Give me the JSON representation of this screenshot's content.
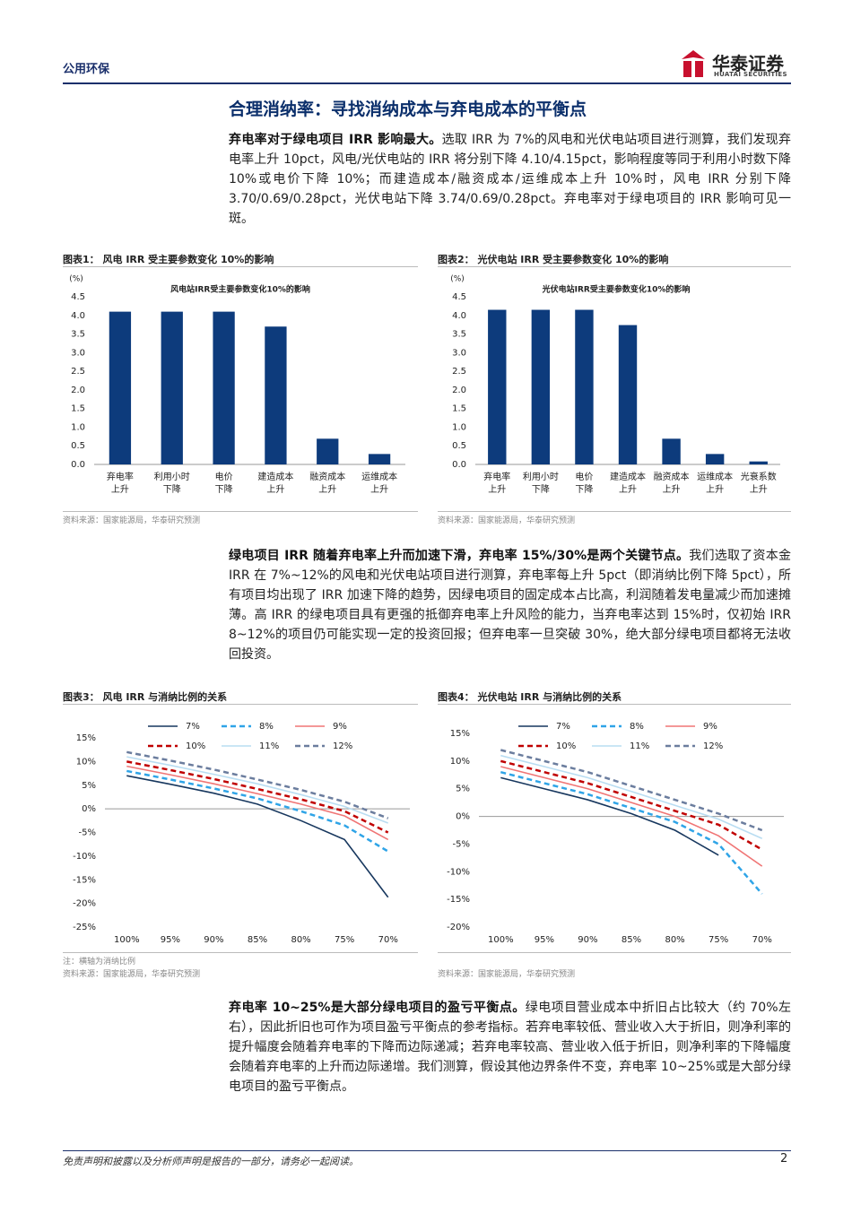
{
  "header": {
    "section": "公用环保",
    "logo_cn": "华泰证券",
    "logo_en": "HUATAI SECURITIES"
  },
  "title": "合理消纳率：寻找消纳成本与弃电成本的平衡点",
  "paragraphs": [
    {
      "lead": "弃电率对于绿电项目 IRR 影响最大。",
      "text": "选取 IRR 为 7%的风电和光伏电站项目进行测算，我们发现弃电率上升 10pct，风电/光伏电站的 IRR 将分别下降 4.10/4.15pct，影响程度等同于利用小时数下降 10%或电价下降 10%；而建造成本/融资成本/运维成本上升 10%时，风电 IRR 分别下降 3.70/0.69/0.28pct，光伏电站下降 3.74/0.69/0.28pct。弃电率对于绿电项目的 IRR 影响可见一斑。"
    },
    {
      "lead": "绿电项目 IRR 随着弃电率上升而加速下滑，弃电率 15%/30%是两个关键节点。",
      "text": "我们选取了资本金 IRR 在 7%~12%的风电和光伏电站项目进行测算，弃电率每上升 5pct（即消纳比例下降 5pct），所有项目均出现了 IRR 加速下降的趋势，因绿电项目的固定成本占比高，利润随着发电量减少而加速摊薄。高 IRR 的绿电项目具有更强的抵御弃电率上升风险的能力，当弃电率达到 15%时，仅初始 IRR 8~12%的项目仍可能实现一定的投资回报；但弃电率一旦突破 30%，绝大部分绿电项目都将无法收回投资。"
    },
    {
      "lead": "弃电率 10~25%是大部分绿电项目的盈亏平衡点。",
      "text": "绿电项目营业成本中折旧占比较大（约 70%左右），因此折旧也可作为项目盈亏平衡点的参考指标。若弃电率较低、营业收入大于折旧，则净利率的提升幅度会随着弃电率的下降而边际递减；若弃电率较高、营业收入低于折旧，则净利率的下降幅度会随着弃电率的上升而边际递增。我们测算，假设其他边界条件不变，弃电率 10~25%或是大部分绿电项目的盈亏平衡点。"
    }
  ],
  "chart_data": [
    {
      "type": "bar",
      "caption": "图表1：  风电 IRR 受主要参数变化 10%的影响",
      "title": "风电站IRR受主要参数变化10%的影响",
      "y_unit": "(%)",
      "categories": [
        [
          "弃电率",
          "上升"
        ],
        [
          "利用小时",
          "下降"
        ],
        [
          "电价",
          "下降"
        ],
        [
          "建造成本",
          "上升"
        ],
        [
          "融资成本",
          "上升"
        ],
        [
          "运维成本",
          "上升"
        ]
      ],
      "values": [
        4.1,
        4.1,
        4.1,
        3.7,
        0.69,
        0.28
      ],
      "color": "#0d3b7c",
      "ylim": [
        0,
        4.5
      ],
      "yticks": [
        {
          "value": 0,
          "label": "0.0"
        },
        {
          "value": 0.5,
          "label": "0.5"
        },
        {
          "value": 1,
          "label": "1.0"
        },
        {
          "value": 1.5,
          "label": "1.5"
        },
        {
          "value": 2,
          "label": "2.0"
        },
        {
          "value": 2.5,
          "label": "2.5"
        },
        {
          "value": 3,
          "label": "3.0"
        },
        {
          "value": 3.5,
          "label": "3.5"
        },
        {
          "value": 4,
          "label": "4.0"
        },
        {
          "value": 4.5,
          "label": "4.5"
        }
      ],
      "source": "资料来源：国家能源局，华泰研究预测"
    },
    {
      "type": "bar",
      "caption": "图表2：  光伏电站 IRR 受主要参数变化 10%的影响",
      "title": "光伏电站IRR受主要参数变化10%的影响",
      "y_unit": "(%)",
      "categories": [
        [
          "弃电率",
          "上升"
        ],
        [
          "利用小时",
          "下降"
        ],
        [
          "电价",
          "下降"
        ],
        [
          "建造成本",
          "上升"
        ],
        [
          "融资成本",
          "上升"
        ],
        [
          "运维成本",
          "上升"
        ],
        [
          "光衰系数",
          "上升"
        ]
      ],
      "values": [
        4.15,
        4.15,
        4.15,
        3.74,
        0.69,
        0.28,
        0.08
      ],
      "color": "#0d3b7c",
      "ylim": [
        0,
        4.5
      ],
      "yticks": [
        {
          "value": 0,
          "label": "0.0"
        },
        {
          "value": 0.5,
          "label": "0.5"
        },
        {
          "value": 1,
          "label": "1.0"
        },
        {
          "value": 1.5,
          "label": "1.5"
        },
        {
          "value": 2,
          "label": "2.0"
        },
        {
          "value": 2.5,
          "label": "2.5"
        },
        {
          "value": 3,
          "label": "3.0"
        },
        {
          "value": 3.5,
          "label": "3.5"
        },
        {
          "value": 4,
          "label": "4.0"
        },
        {
          "value": 4.5,
          "label": "4.5"
        }
      ],
      "source": "资料来源：国家能源局，华泰研究预测"
    },
    {
      "type": "line",
      "caption": "图表3：  风电 IRR 与消纳比例的关系",
      "categories": [
        "100%",
        "95%",
        "90%",
        "85%",
        "80%",
        "75%",
        "70%"
      ],
      "series": [
        {
          "name": "7%",
          "color": "#17375e",
          "line_style": "solid",
          "values": [
            7,
            5.2,
            3.3,
            1.0,
            -2.5,
            -6.5,
            -18.7
          ]
        },
        {
          "name": "8%",
          "color": "#2fa4e7",
          "line_style": "dashed",
          "values": [
            8,
            6.2,
            4.3,
            2.2,
            -0.5,
            -3.5,
            -9
          ]
        },
        {
          "name": "9%",
          "color": "#f07575",
          "line_style": "solid",
          "values": [
            9,
            7.2,
            5.3,
            3.2,
            1.0,
            -1.5,
            -6.5
          ]
        },
        {
          "name": "10%",
          "color": "#c00000",
          "line_style": "dashed",
          "values": [
            10,
            8.2,
            6.3,
            4.2,
            2.0,
            -0.5,
            -5
          ]
        },
        {
          "name": "11%",
          "color": "#b9ddf2",
          "line_style": "solid",
          "values": [
            11,
            9.2,
            7.3,
            5.3,
            3.0,
            0.5,
            -3
          ]
        },
        {
          "name": "12%",
          "color": "#6b7d9e",
          "line_style": "dashed",
          "values": [
            12,
            10.2,
            8.3,
            6.2,
            4.0,
            1.5,
            -2
          ]
        }
      ],
      "ylim": [
        -25,
        15
      ],
      "yticks": [
        {
          "value": -25,
          "label": "-25%"
        },
        {
          "value": -20,
          "label": "-20%"
        },
        {
          "value": -15,
          "label": "-15%"
        },
        {
          "value": -10,
          "label": "-10%"
        },
        {
          "value": -5,
          "label": "-5%"
        },
        {
          "value": 0,
          "label": "0%"
        },
        {
          "value": 5,
          "label": "5%"
        },
        {
          "value": 10,
          "label": "10%"
        },
        {
          "value": 15,
          "label": "15%"
        }
      ],
      "note": "注：横轴为消纳比例",
      "source": "资料来源：国家能源局，华泰研究预测"
    },
    {
      "type": "line",
      "caption": "图表4：  光伏电站 IRR 与消纳比例的关系",
      "categories": [
        "100%",
        "95%",
        "90%",
        "85%",
        "80%",
        "75%",
        "70%"
      ],
      "series": [
        {
          "name": "7%",
          "color": "#17375e",
          "line_style": "solid",
          "values": [
            7,
            5.0,
            3.0,
            0.5,
            -2.5,
            -7,
            null
          ]
        },
        {
          "name": "8%",
          "color": "#2fa4e7",
          "line_style": "dashed",
          "values": [
            8,
            6,
            4,
            1.5,
            -1,
            -5,
            -14
          ]
        },
        {
          "name": "9%",
          "color": "#f07575",
          "line_style": "solid",
          "values": [
            9,
            7,
            5,
            2.5,
            0,
            -3.5,
            -9
          ]
        },
        {
          "name": "10%",
          "color": "#c00000",
          "line_style": "dashed",
          "values": [
            10,
            8,
            6,
            3.5,
            1,
            -1.5,
            -6
          ]
        },
        {
          "name": "11%",
          "color": "#b9ddf2",
          "line_style": "solid",
          "values": [
            11,
            9,
            7,
            4.5,
            2,
            -0.5,
            -4
          ]
        },
        {
          "name": "12%",
          "color": "#6b7d9e",
          "line_style": "dashed",
          "values": [
            12,
            10,
            8,
            5.5,
            3,
            0.5,
            -2.5
          ]
        }
      ],
      "ylim": [
        -20,
        15
      ],
      "yticks": [
        {
          "value": -20,
          "label": "-20%"
        },
        {
          "value": -15,
          "label": "-15%"
        },
        {
          "value": -10,
          "label": "-10%"
        },
        {
          "value": -5,
          "label": "-5%"
        },
        {
          "value": 0,
          "label": "0%"
        },
        {
          "value": 5,
          "label": "5%"
        },
        {
          "value": 10,
          "label": "10%"
        },
        {
          "value": 15,
          "label": "15%"
        }
      ],
      "source": "资料来源：国家能源局，华泰研究预测"
    }
  ],
  "footer": {
    "disclaimer": "免责声明和披露以及分析师声明是报告的一部分，请务必一起阅读。",
    "page": "2"
  }
}
